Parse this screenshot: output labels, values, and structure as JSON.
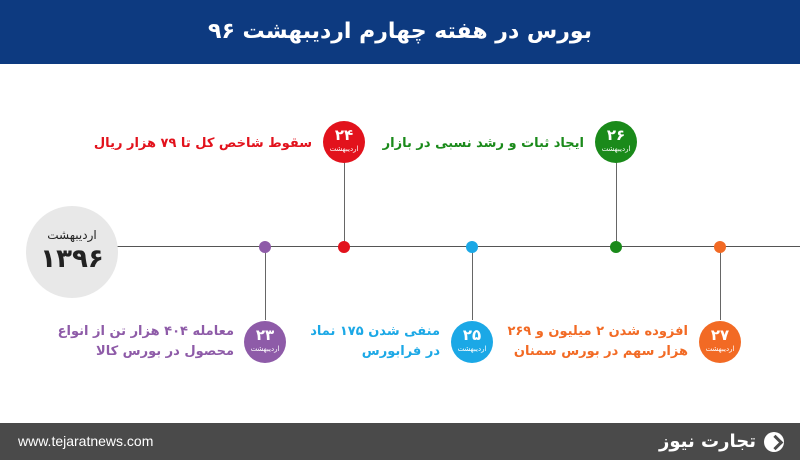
{
  "header": {
    "title": "بورس در هفته چهارم اردیبهشت ۹۶"
  },
  "year_marker": {
    "month": "اردیبهشت",
    "year": "۱۳۹۶"
  },
  "events": [
    {
      "day": "۲۳",
      "month": "اردیبهشت",
      "color": "#8e5ba8",
      "text_line1": "معامله ۴۰۴ هزار تن از انواع",
      "text_line2": "محصول در بورس کالا"
    },
    {
      "day": "۲۴",
      "month": "اردیبهشت",
      "color": "#e2121c",
      "text_line1": "سقوط شاخص کل تا ۷۹ هزار ریال",
      "text_line2": ""
    },
    {
      "day": "۲۵",
      "month": "اردیبهشت",
      "color": "#1ba8e6",
      "text_line1": "منفی شدن ۱۷۵ نماد",
      "text_line2": "در فرابورس"
    },
    {
      "day": "۲۶",
      "month": "اردیبهشت",
      "color": "#1a8a1a",
      "text_line1": "ایجاد ثبات و رشد نسبی در بازار",
      "text_line2": ""
    },
    {
      "day": "۲۷",
      "month": "اردیبهشت",
      "color": "#f26a24",
      "text_line1": "افزوده شدن ۲ میلیون و ۲۶۹",
      "text_line2": "هزار سهم در بورس سمنان"
    }
  ],
  "footer": {
    "url": "www.tejaratnews.com",
    "logo": "تجارت نیوز"
  }
}
